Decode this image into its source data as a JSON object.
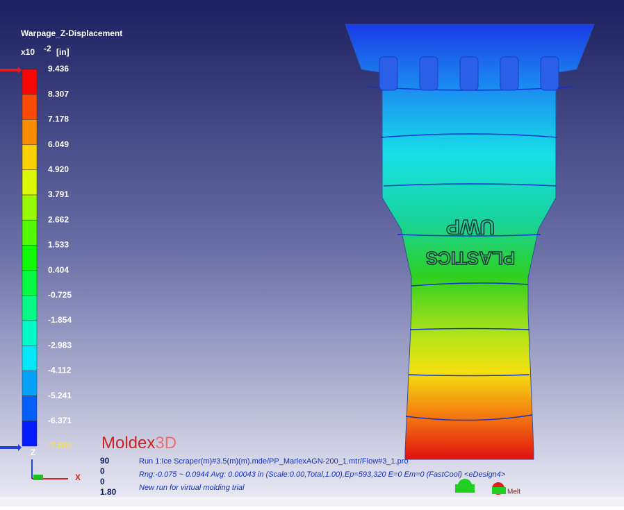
{
  "legend": {
    "title": "Warpage_Z-Displacement",
    "unit_base": "x10",
    "unit_exp": "-2",
    "unit": "[in]",
    "labels": [
      "9.436",
      "8.307",
      "7.178",
      "6.049",
      "4.920",
      "3.791",
      "2.662",
      "1.533",
      "0.404",
      "-0.725",
      "-1.854",
      "-2.983",
      "-4.112",
      "-5.241",
      "-6.371",
      "-7.500"
    ]
  },
  "part_text": {
    "line1": "UWP",
    "line2": "PLASTICS"
  },
  "logo": {
    "name": "Moldex",
    "suffix": "3D"
  },
  "axes": {
    "z": "Z",
    "x": "X"
  },
  "view": [
    "90",
    "0",
    "0",
    "1.80"
  ],
  "info": [
    "Run 1:Ice Scraper(m)#3.5(m)(m).mde/PP_MarlexAGN-200_1.mtr/Flow#3_1.pro",
    "Rng:-0.075 ~ 0.0944  Avg: 0.00043 in (Scale:0.00,Total,1.00),Ep=593,320 E=0 Em=0 (FastCool) <eDesign4>",
    "New run for virtual molding trial"
  ],
  "melt": "Melt"
}
